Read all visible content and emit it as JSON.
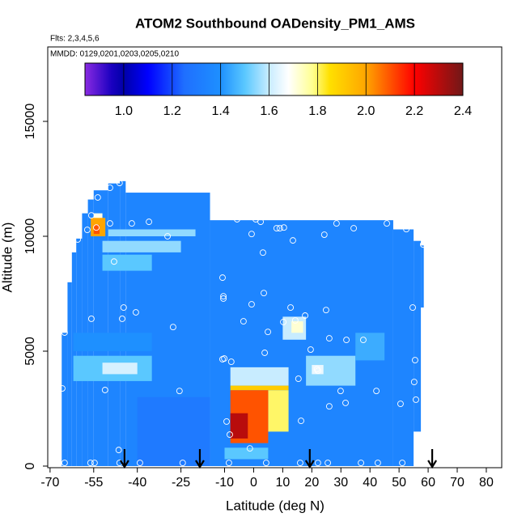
{
  "chart_data": {
    "type": "heatmap",
    "title": "ATOM2 Southbound OADensity_PM1_AMS",
    "subtitle": "Flts: 2,3,4,5,6",
    "annotation": "MMDD: 0129,0201,0203,0205,0210",
    "x_label": "Latitude (deg N)",
    "y_label": "Altitude (m)",
    "xlim": [
      -70.8,
      85.3
    ],
    "ylim": [
      -70,
      18240
    ],
    "xticks": [
      -70,
      -55,
      -40,
      -25,
      -10,
      0,
      10,
      20,
      30,
      40,
      50,
      60,
      70,
      80
    ],
    "yticks": [
      0,
      5000,
      10000,
      15000
    ],
    "colorbar": {
      "lim": [
        0.84,
        2.4
      ],
      "ticks": [
        {
          "value": 1,
          "label": "1.0"
        },
        1.2,
        1.4,
        1.6,
        1.8,
        {
          "value": 2,
          "label": "2.0"
        },
        2.2,
        2.4
      ],
      "colorscale": [
        [
          0.84,
          "#8a2be2"
        ],
        [
          0.95,
          "#1a00c0"
        ],
        [
          1.0,
          "#0000a8"
        ],
        [
          1.1,
          "#0000ff"
        ],
        [
          1.25,
          "#1f6fff"
        ],
        [
          1.4,
          "#1e90ff"
        ],
        [
          1.5,
          "#5ac8ff"
        ],
        [
          1.6,
          "#c8ecff"
        ],
        [
          1.68,
          "#ffffff"
        ],
        [
          1.78,
          "#ffff90"
        ],
        [
          1.85,
          "#ffe000"
        ],
        [
          2.0,
          "#ffa500"
        ],
        [
          2.2,
          "#ff0000"
        ],
        [
          2.4,
          "#701818"
        ]
      ]
    },
    "cells": [
      [
        -66,
        -64,
        0,
        5800,
        1.35
      ],
      [
        -64,
        -62.5,
        0,
        8000,
        1.35
      ],
      [
        -62.5,
        -61,
        0,
        9300,
        1.35
      ],
      [
        -61,
        -59,
        0,
        9900,
        1.35
      ],
      [
        -59,
        -57,
        0,
        11000,
        1.35
      ],
      [
        -57,
        -55,
        0,
        11600,
        1.35
      ],
      [
        -55,
        -50,
        0,
        12000,
        1.35
      ],
      [
        -50,
        -46,
        0,
        12300,
        1.35
      ],
      [
        -46,
        -44,
        0,
        12400,
        1.35
      ],
      [
        -44,
        -15,
        0,
        11900,
        1.35
      ],
      [
        -15,
        48,
        0,
        10700,
        1.35
      ],
      [
        48,
        55,
        0,
        10300,
        1.35
      ],
      [
        55,
        57.5,
        1500,
        9800,
        1.35
      ],
      [
        57.5,
        58.5,
        6900,
        9600,
        1.35
      ],
      [
        -40,
        -15,
        0,
        3000,
        1.3
      ],
      [
        -62,
        -35,
        5000,
        5800,
        1.4
      ],
      [
        -62,
        -35,
        3700,
        4800,
        1.5
      ],
      [
        -52,
        -40,
        4000,
        4500,
        1.62
      ],
      [
        -52,
        -35,
        8500,
        9200,
        1.5
      ],
      [
        -52,
        -25,
        9300,
        9800,
        1.55
      ],
      [
        -50,
        -20,
        10000,
        10300,
        1.55
      ],
      [
        -55,
        -52,
        10000,
        11000,
        1.7
      ],
      [
        -56,
        -51,
        10000,
        10800,
        2.0
      ],
      [
        -55,
        -53,
        10100,
        10500,
        2.1
      ],
      [
        -8,
        12,
        3500,
        4300,
        1.6
      ],
      [
        -8,
        12,
        3300,
        3500,
        1.9
      ],
      [
        5,
        12,
        1500,
        3300,
        1.8
      ],
      [
        -8,
        5,
        1000,
        3300,
        2.1
      ],
      [
        -8,
        -2,
        1200,
        2300,
        2.3
      ],
      [
        -10,
        5,
        300,
        800,
        1.5
      ],
      [
        10,
        18,
        5500,
        6500,
        1.6
      ],
      [
        13,
        17,
        5800,
        6300,
        1.72
      ],
      [
        18,
        35,
        3500,
        4800,
        1.55
      ],
      [
        20,
        24,
        4000,
        4400,
        1.65
      ],
      [
        35,
        45,
        4600,
        5800,
        1.45
      ]
    ],
    "points": {
      "x": [
        -46.1,
        -49.4,
        -53.6,
        -55.8,
        -57.2,
        -54.1,
        -60.5,
        -49.4,
        -41.9,
        -36,
        -29.6,
        -48,
        -5.7,
        0.7,
        2.4,
        -0.7,
        3.2,
        7.9,
        9,
        10.4,
        13.5,
        24.3,
        28.5,
        34.4,
        45.8,
        52.5,
        58.3,
        -10.7,
        -10.4,
        -10.4,
        3.5,
        -0.7,
        -3.5,
        4.9,
        10.2,
        12.7,
        14.3,
        17.7,
        24.9,
        54.7,
        -44.7,
        -40.5,
        -55.8,
        -65,
        -27.7,
        -45.2,
        19.6,
        26,
        31.9,
        37.7,
        3.8,
        -10.7,
        -10.1,
        -7.7,
        15.4,
        21.8,
        22.1,
        55.5,
        55.2,
        29.9,
        42.2,
        -65.8,
        -51.1,
        -25.5,
        31.6,
        26,
        50.5,
        55.8,
        -9.3,
        16.3,
        -8.2,
        -65,
        -56.1,
        -54.7,
        -46.1,
        -39.1,
        -24.4,
        -8.5,
        4.3,
        16,
        22.1,
        25.5,
        36.9,
        42.7,
        51.1,
        -1.3,
        -46.4
      ],
      "y": [
        12320,
        12110,
        11690,
        10910,
        10280,
        10380,
        9860,
        10560,
        10560,
        10630,
        10000,
        8900,
        10740,
        10740,
        10630,
        10100,
        9290,
        10350,
        10350,
        10380,
        9820,
        10070,
        10560,
        10350,
        10560,
        10310,
        9640,
        8200,
        7390,
        7290,
        7530,
        7040,
        6300,
        5840,
        6270,
        6900,
        6340,
        6550,
        6790,
        6900,
        6900,
        6690,
        6410,
        5810,
        6050,
        6410,
        5070,
        5560,
        5490,
        5490,
        4930,
        4650,
        4680,
        4540,
        3800,
        4220,
        4150,
        4610,
        3660,
        3270,
        3270,
        3380,
        3310,
        3270,
        2750,
        2600,
        2710,
        2890,
        1940,
        1970,
        1370,
        140,
        140,
        140,
        140,
        140,
        140,
        140,
        140,
        140,
        140,
        140,
        140,
        140,
        140,
        770,
        700
      ]
    },
    "arrow_latitudes": [
      -44.4,
      -18.5,
      19.3,
      61.4
    ]
  }
}
